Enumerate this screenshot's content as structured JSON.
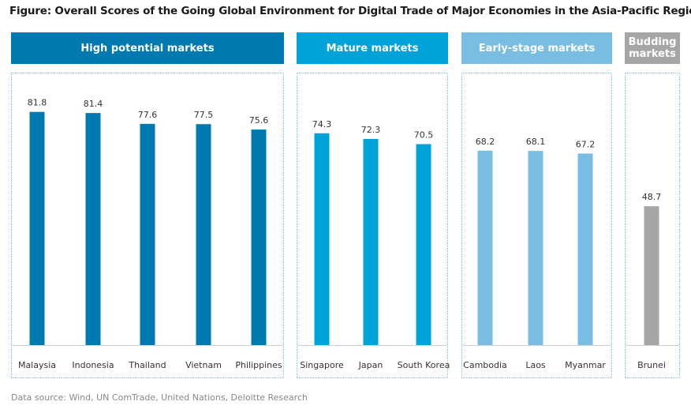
{
  "title": "Figure: Overall Scores of the Going Global Environment for Digital Trade of Major Economies in the Asia-Pacific Region",
  "source": "Data source: Wind, UN ComTrade, United Nations, Deloitte Research",
  "groups": [
    {
      "label": "High potential markets",
      "color": "#0079b0"
    },
    {
      "label": "Mature markets",
      "color": "#00a3d9"
    },
    {
      "label": "Early-stage markets",
      "color": "#79bde3"
    },
    {
      "label": "Budding markets",
      "color": "#a6a6a6"
    }
  ],
  "chart_data": {
    "type": "bar",
    "title": "Figure: Overall Scores of the Going Global Environment for Digital Trade of Major Economies in the Asia-Pacific Region",
    "categories": [
      "Malaysia",
      "Indonesia",
      "Thailand",
      "Vietnam",
      "Philippines",
      "Singapore",
      "Japan",
      "South Korea",
      "Cambodia",
      "Laos",
      "Myanmar",
      "Brunei"
    ],
    "values": [
      81.8,
      81.4,
      77.6,
      77.5,
      75.6,
      74.3,
      72.3,
      70.5,
      68.2,
      68.1,
      67.2,
      48.7
    ],
    "group_of_category": [
      0,
      0,
      0,
      0,
      0,
      1,
      1,
      1,
      2,
      2,
      2,
      3
    ],
    "ylim": [
      0,
      85
    ],
    "grid": false,
    "data_labels": true
  }
}
